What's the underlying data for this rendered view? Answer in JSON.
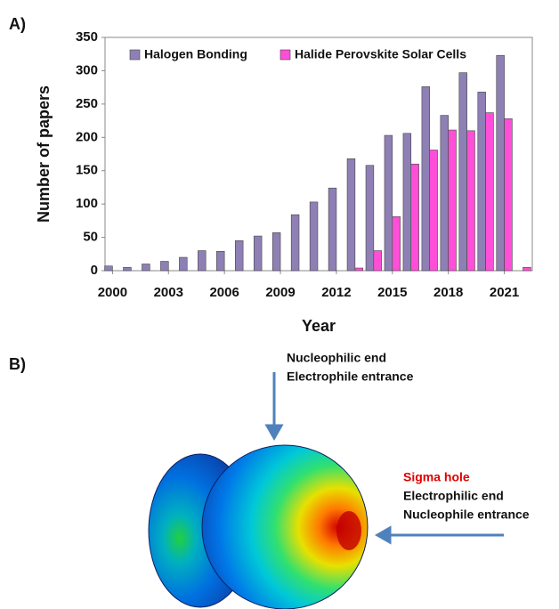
{
  "chart_data": {
    "type": "bar",
    "x": [
      2000,
      2001,
      2002,
      2003,
      2004,
      2005,
      2006,
      2007,
      2008,
      2009,
      2010,
      2011,
      2012,
      2013,
      2014,
      2015,
      2016,
      2017,
      2018,
      2019,
      2020,
      2021,
      2022
    ],
    "series": [
      {
        "name": "Halogen Bonding",
        "color": "#8e80b5",
        "values": [
          7,
          5,
          10,
          14,
          20,
          30,
          29,
          45,
          52,
          57,
          84,
          103,
          124,
          168,
          158,
          203,
          206,
          276,
          233,
          297,
          268,
          323,
          null
        ]
      },
      {
        "name": "Halide Perovskite Solar Cells",
        "color": "#ff4fd8",
        "values": [
          null,
          null,
          null,
          null,
          null,
          null,
          null,
          null,
          null,
          null,
          null,
          null,
          null,
          4,
          30,
          81,
          160,
          181,
          211,
          210,
          237,
          228,
          5
        ]
      }
    ],
    "xlabel": "Year",
    "ylabel": "Number of papers",
    "xlim": [
      1999.6,
      2022.5
    ],
    "xticks": [
      2000,
      2003,
      2006,
      2009,
      2012,
      2015,
      2018,
      2021
    ],
    "ylim": [
      0,
      350
    ],
    "yticks": [
      0,
      50,
      100,
      150,
      200,
      250,
      300,
      350
    ],
    "grid": false,
    "legend": "top"
  },
  "panels": [
    "A)",
    "B)"
  ],
  "diagram": {
    "top_label": [
      "Nucleophilic end",
      "Electrophile entrance"
    ],
    "right_label": {
      "highlight": "Sigma hole",
      "lines": [
        "Electrophilic end",
        "Nucleophile entrance"
      ]
    }
  }
}
